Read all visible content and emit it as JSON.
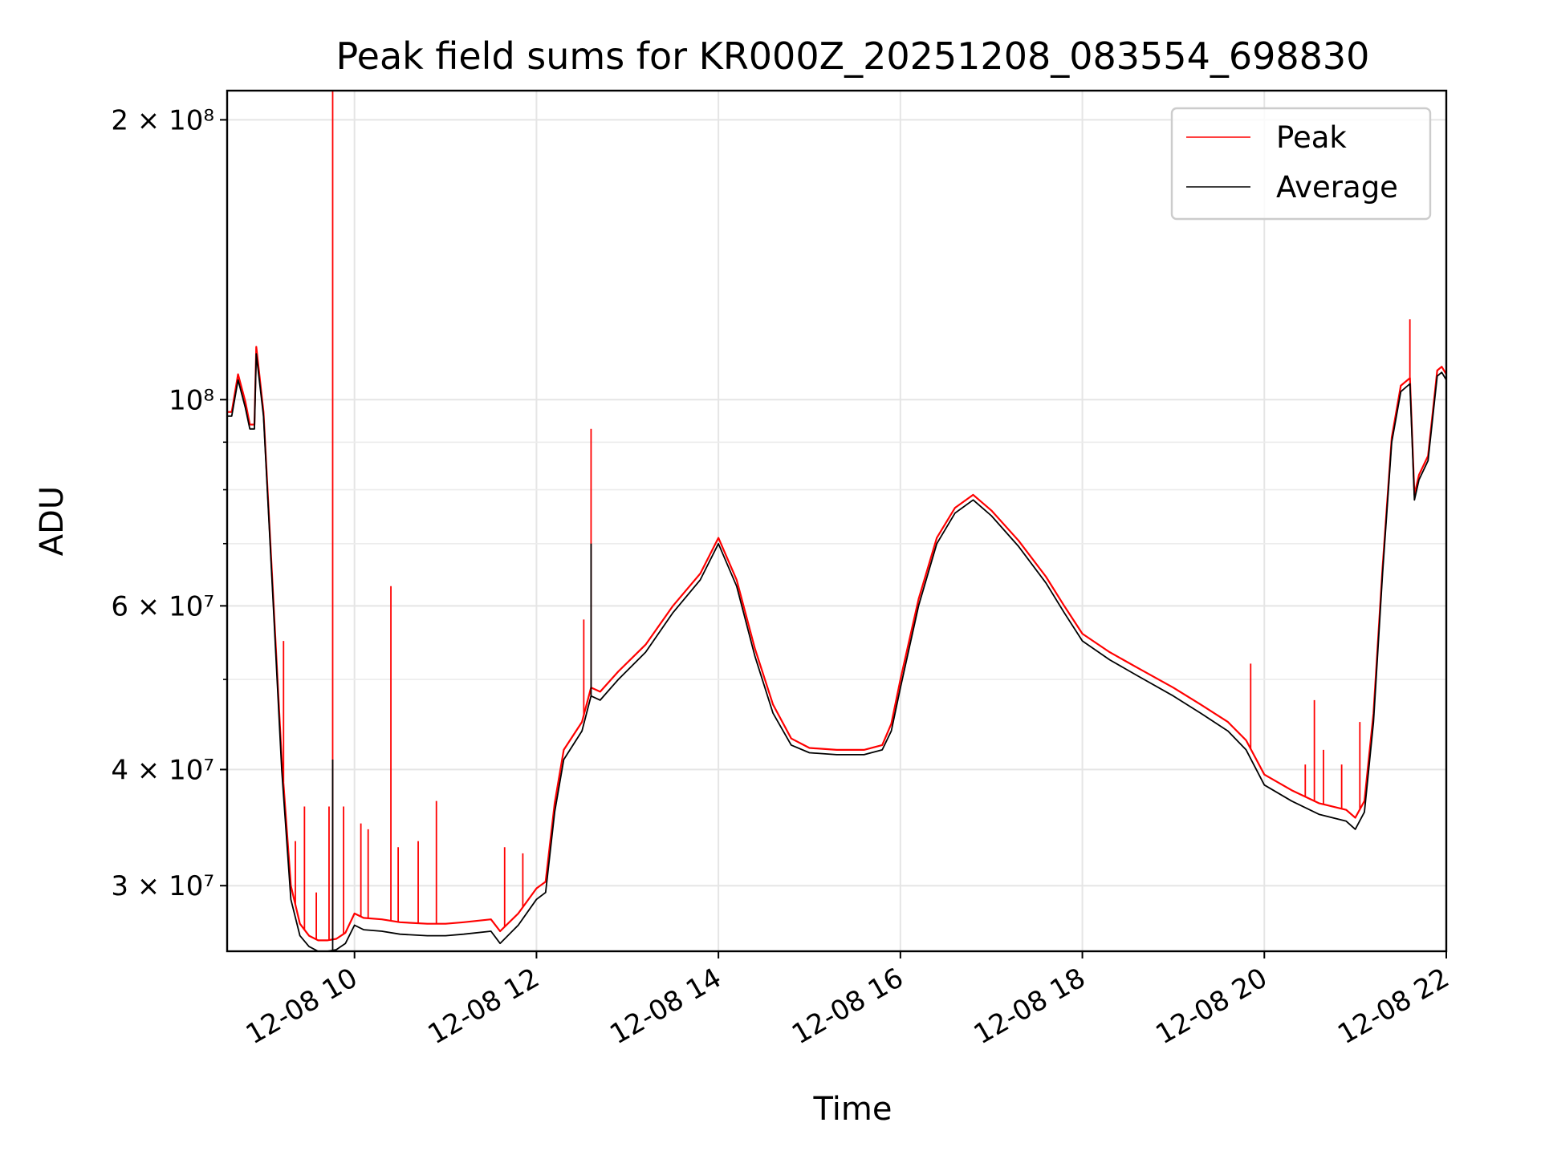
{
  "chart_data": {
    "type": "line",
    "title": "Peak field sums for KR000Z_20251208_083554_698830",
    "xlabel": "Time",
    "ylabel": "ADU",
    "yscale": "log",
    "xlim": [
      8.6,
      22.0
    ],
    "ylim": [
      25500000,
      215000000
    ],
    "grid": true,
    "legend_position": "top-right",
    "x_ticks": [
      {
        "value": 10,
        "label": "12-08 10"
      },
      {
        "value": 12,
        "label": "12-08 12"
      },
      {
        "value": 14,
        "label": "12-08 14"
      },
      {
        "value": 16,
        "label": "12-08 16"
      },
      {
        "value": 18,
        "label": "12-08 18"
      },
      {
        "value": 20,
        "label": "12-08 20"
      },
      {
        "value": 22,
        "label": "12-08 22"
      }
    ],
    "y_ticks": [
      {
        "value": 30000000,
        "label": "3 × 10⁷"
      },
      {
        "value": 40000000,
        "label": "4 × 10⁷"
      },
      {
        "value": 60000000,
        "label": "6 × 10⁷"
      },
      {
        "value": 100000000,
        "label": "10⁸"
      },
      {
        "value": 200000000,
        "label": "2 × 10⁸"
      }
    ],
    "y_minor_ticks": [
      50000000,
      70000000,
      80000000,
      90000000
    ],
    "series": [
      {
        "name": "Average",
        "color": "#000000",
        "x": [
          8.6,
          8.65,
          8.72,
          8.8,
          8.85,
          8.9,
          8.92,
          9.0,
          9.1,
          9.2,
          9.3,
          9.4,
          9.5,
          9.6,
          9.7,
          9.8,
          9.9,
          10.0,
          10.1,
          10.3,
          10.5,
          10.8,
          11.0,
          11.2,
          11.5,
          11.6,
          11.8,
          12.0,
          12.1,
          12.2,
          12.3,
          12.5,
          12.6,
          12.7,
          12.9,
          13.2,
          13.5,
          13.8,
          14.0,
          14.2,
          14.4,
          14.6,
          14.8,
          15.0,
          15.3,
          15.6,
          15.8,
          15.9,
          16.0,
          16.2,
          16.4,
          16.6,
          16.8,
          17.0,
          17.3,
          17.6,
          17.8,
          18.0,
          18.3,
          18.6,
          19.0,
          19.3,
          19.6,
          19.8,
          20.0,
          20.3,
          20.6,
          20.9,
          21.0,
          21.1,
          21.2,
          21.3,
          21.4,
          21.5,
          21.6,
          21.65,
          21.7,
          21.8,
          21.9,
          21.95,
          22.0
        ],
        "y": [
          96000000,
          96000000,
          105000000,
          98000000,
          93000000,
          93000000,
          112000000,
          96000000,
          62000000,
          40000000,
          29000000,
          26500000,
          25800000,
          25500000,
          25500000,
          25600000,
          26000000,
          27200000,
          26900000,
          26800000,
          26600000,
          26500000,
          26500000,
          26600000,
          26800000,
          26000000,
          27200000,
          29000000,
          29500000,
          36000000,
          41000000,
          44000000,
          48000000,
          47500000,
          50000000,
          53500000,
          59000000,
          64000000,
          70000000,
          63000000,
          53000000,
          46000000,
          42500000,
          41700000,
          41500000,
          41500000,
          42000000,
          44000000,
          49000000,
          60000000,
          70000000,
          75500000,
          78000000,
          75000000,
          69500000,
          63500000,
          59000000,
          55000000,
          52500000,
          50500000,
          48000000,
          46000000,
          44000000,
          42000000,
          38500000,
          37000000,
          35800000,
          35200000,
          34500000,
          36000000,
          45000000,
          65000000,
          90000000,
          102000000,
          104000000,
          78000000,
          82000000,
          86000000,
          106000000,
          107000000,
          105000000
        ]
      },
      {
        "name": "Peak",
        "color": "#ff0000",
        "x": [
          8.6,
          8.65,
          8.72,
          8.8,
          8.85,
          8.9,
          8.92,
          9.0,
          9.1,
          9.2,
          9.3,
          9.4,
          9.5,
          9.6,
          9.7,
          9.8,
          9.9,
          10.0,
          10.1,
          10.3,
          10.5,
          10.8,
          11.0,
          11.2,
          11.5,
          11.6,
          11.8,
          12.0,
          12.1,
          12.2,
          12.3,
          12.5,
          12.6,
          12.7,
          12.9,
          13.2,
          13.5,
          13.8,
          14.0,
          14.2,
          14.4,
          14.6,
          14.8,
          15.0,
          15.3,
          15.6,
          15.8,
          15.9,
          16.0,
          16.2,
          16.4,
          16.6,
          16.8,
          17.0,
          17.3,
          17.6,
          17.8,
          18.0,
          18.3,
          18.6,
          19.0,
          19.3,
          19.6,
          19.8,
          20.0,
          20.3,
          20.6,
          20.9,
          21.0,
          21.1,
          21.2,
          21.3,
          21.4,
          21.5,
          21.6,
          21.65,
          21.7,
          21.8,
          21.9,
          21.95,
          22.0
        ],
        "y": [
          97000000,
          97000000,
          106500000,
          99500000,
          94000000,
          94000000,
          114000000,
          97000000,
          63000000,
          41000000,
          30000000,
          27300000,
          26500000,
          26200000,
          26200000,
          26300000,
          26700000,
          28000000,
          27700000,
          27600000,
          27400000,
          27300000,
          27300000,
          27400000,
          27600000,
          26800000,
          28000000,
          29800000,
          30300000,
          36800000,
          42000000,
          45000000,
          49000000,
          48500000,
          51000000,
          54500000,
          60000000,
          65000000,
          71000000,
          64000000,
          54000000,
          47000000,
          43200000,
          42200000,
          42000000,
          42000000,
          42500000,
          44800000,
          50000000,
          61000000,
          71000000,
          76500000,
          79000000,
          76000000,
          70500000,
          64500000,
          60000000,
          56000000,
          53500000,
          51500000,
          49000000,
          47000000,
          45000000,
          43000000,
          39500000,
          38000000,
          36800000,
          36200000,
          35500000,
          37000000,
          46000000,
          66000000,
          91000000,
          103500000,
          105500000,
          79000000,
          83000000,
          87000000,
          107500000,
          108500000,
          106500000
        ]
      }
    ],
    "spikes": [
      {
        "series": "Peak",
        "x": 9.22,
        "y": 55000000
      },
      {
        "series": "Peak",
        "x": 9.35,
        "y": 33500000
      },
      {
        "series": "Peak",
        "x": 9.45,
        "y": 36500000
      },
      {
        "series": "Peak",
        "x": 9.58,
        "y": 29500000
      },
      {
        "series": "Peak",
        "x": 9.72,
        "y": 36500000
      },
      {
        "series": "Peak",
        "x": 9.76,
        "y": 215000000
      },
      {
        "series": "Peak",
        "x": 9.88,
        "y": 36500000
      },
      {
        "series": "Peak",
        "x": 10.07,
        "y": 35000000
      },
      {
        "series": "Peak",
        "x": 10.15,
        "y": 34500000
      },
      {
        "series": "Peak",
        "x": 10.4,
        "y": 63000000
      },
      {
        "series": "Peak",
        "x": 10.48,
        "y": 33000000
      },
      {
        "series": "Peak",
        "x": 10.7,
        "y": 33500000
      },
      {
        "series": "Peak",
        "x": 10.9,
        "y": 37000000
      },
      {
        "series": "Peak",
        "x": 11.65,
        "y": 33000000
      },
      {
        "series": "Peak",
        "x": 11.85,
        "y": 32500000
      },
      {
        "series": "Peak",
        "x": 12.52,
        "y": 58000000
      },
      {
        "series": "Peak",
        "x": 12.6,
        "y": 93000000
      },
      {
        "series": "Peak",
        "x": 19.85,
        "y": 52000000
      },
      {
        "series": "Peak",
        "x": 20.45,
        "y": 40500000
      },
      {
        "series": "Peak",
        "x": 20.55,
        "y": 47500000
      },
      {
        "series": "Peak",
        "x": 20.65,
        "y": 42000000
      },
      {
        "series": "Peak",
        "x": 20.85,
        "y": 40500000
      },
      {
        "series": "Peak",
        "x": 21.05,
        "y": 45000000
      },
      {
        "series": "Peak",
        "x": 21.6,
        "y": 122000000
      },
      {
        "series": "Average",
        "x": 9.76,
        "y": 41000000
      },
      {
        "series": "Average",
        "x": 12.6,
        "y": 70000000
      }
    ]
  }
}
